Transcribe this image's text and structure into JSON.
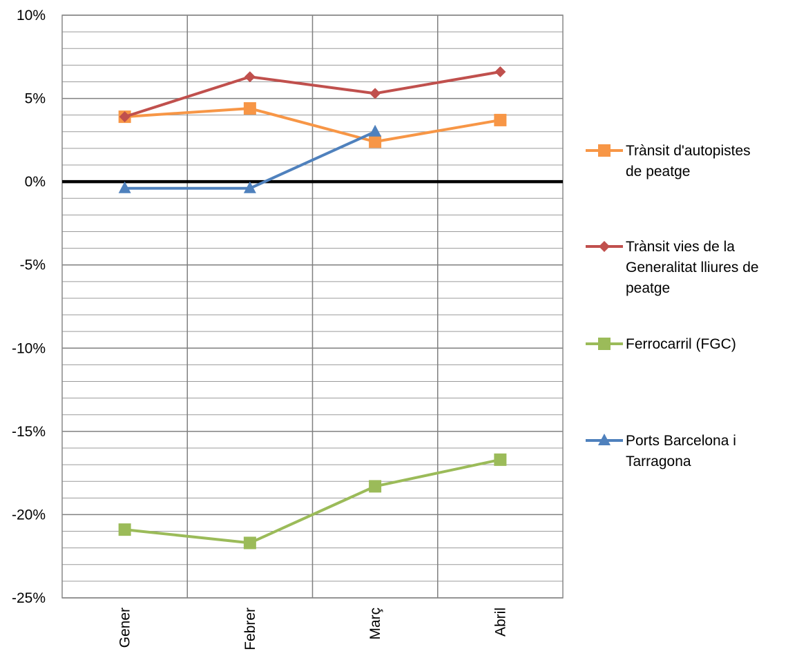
{
  "chart_data": {
    "type": "line",
    "categories": [
      "Gener",
      "Febrer",
      "Març",
      "Abril"
    ],
    "ylim": [
      -25,
      10
    ],
    "y_major_step": 5,
    "y_minor_step": 1,
    "y_tick_format": "percent",
    "y_tick_labels": [
      "10%",
      "5%",
      "0%",
      "-5%",
      "-10%",
      "-15%",
      "-20%",
      "-25%"
    ],
    "x_tick_rotation": "vertical",
    "grid": true,
    "zero_line": true,
    "legend_position": "right",
    "series": [
      {
        "name": "Trànsit d'autopistes de peatge",
        "legend_lines": [
          "Trànsit d'autopistes",
          "de peatge"
        ],
        "values": [
          3.9,
          4.4,
          2.4,
          3.7
        ],
        "color": "#f79646",
        "marker": "square"
      },
      {
        "name": "Trànsit vies de la Generalitat lliures de peatge",
        "legend_lines": [
          "Trànsit vies de la",
          "Generalitat lliures de",
          "peatge"
        ],
        "values": [
          3.9,
          6.3,
          5.3,
          6.6
        ],
        "color": "#c0504d",
        "marker": "diamond"
      },
      {
        "name": "Ferrocarril (FGC)",
        "legend_lines": [
          "Ferrocarril (FGC)"
        ],
        "values": [
          -20.9,
          -21.7,
          -18.3,
          -16.7
        ],
        "color": "#9bbb59",
        "marker": "square"
      },
      {
        "name": "Ports Barcelona i Tarragona",
        "legend_lines": [
          "Ports Barcelona i",
          "Tarragona"
        ],
        "values": [
          -0.4,
          -0.4,
          3.0,
          null
        ],
        "color": "#4f81bd",
        "marker": "triangle"
      }
    ]
  }
}
